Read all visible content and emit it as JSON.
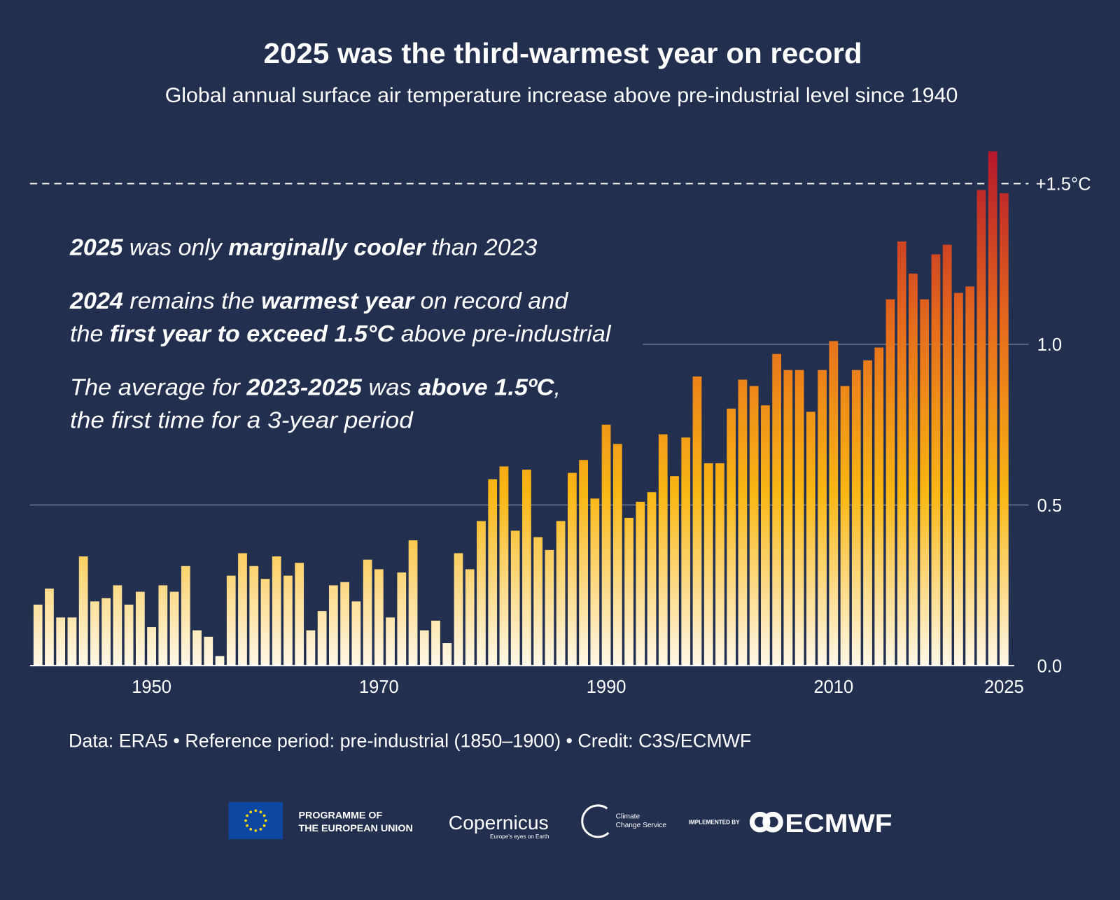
{
  "chart_data": {
    "type": "bar",
    "title": "2025 was the third-warmest year on record",
    "subtitle": "Global annual surface air temperature increase above pre-industrial level since 1940",
    "x": [
      1940,
      1941,
      1942,
      1943,
      1944,
      1945,
      1946,
      1947,
      1948,
      1949,
      1950,
      1951,
      1952,
      1953,
      1954,
      1955,
      1956,
      1957,
      1958,
      1959,
      1960,
      1961,
      1962,
      1963,
      1964,
      1965,
      1966,
      1967,
      1968,
      1969,
      1970,
      1971,
      1972,
      1973,
      1974,
      1975,
      1976,
      1977,
      1978,
      1979,
      1980,
      1981,
      1982,
      1983,
      1984,
      1985,
      1986,
      1987,
      1988,
      1989,
      1990,
      1991,
      1992,
      1993,
      1994,
      1995,
      1996,
      1997,
      1998,
      1999,
      2000,
      2001,
      2002,
      2003,
      2004,
      2005,
      2006,
      2007,
      2008,
      2009,
      2010,
      2011,
      2012,
      2013,
      2014,
      2015,
      2016,
      2017,
      2018,
      2019,
      2020,
      2021,
      2022,
      2023,
      2024,
      2025
    ],
    "values": [
      0.19,
      0.24,
      0.15,
      0.15,
      0.34,
      0.2,
      0.21,
      0.25,
      0.19,
      0.23,
      0.12,
      0.25,
      0.23,
      0.31,
      0.11,
      0.09,
      0.03,
      0.28,
      0.35,
      0.31,
      0.27,
      0.34,
      0.28,
      0.32,
      0.11,
      0.17,
      0.25,
      0.26,
      0.2,
      0.33,
      0.3,
      0.15,
      0.29,
      0.39,
      0.11,
      0.14,
      0.07,
      0.35,
      0.3,
      0.45,
      0.58,
      0.62,
      0.42,
      0.61,
      0.4,
      0.36,
      0.45,
      0.6,
      0.64,
      0.52,
      0.75,
      0.69,
      0.46,
      0.51,
      0.54,
      0.72,
      0.59,
      0.71,
      0.9,
      0.63,
      0.63,
      0.8,
      0.89,
      0.87,
      0.81,
      0.97,
      0.92,
      0.92,
      0.79,
      0.92,
      1.01,
      0.87,
      0.92,
      0.95,
      0.99,
      1.14,
      1.32,
      1.22,
      1.14,
      1.28,
      1.31,
      1.16,
      1.18,
      1.48,
      1.6,
      1.47
    ],
    "colors": [
      "#fff8e8",
      "#f9b714",
      "#e56a1c",
      "#b3172c"
    ],
    "xlim": [
      1939.3,
      2025.9
    ],
    "xticks": [
      1950,
      1970,
      1990,
      2010,
      2025
    ],
    "ylim": [
      0,
      1.6
    ],
    "yticks": [
      {
        "value": 0,
        "label": "0.0"
      },
      0.5,
      {
        "value": 1,
        "label": "1.0"
      }
    ],
    "grid": true,
    "threshold": {
      "value": 1.5,
      "label": "+1.5°C"
    },
    "annotations": [
      {
        "lines": [
          [
            {
              "text": "2025",
              "bold": true
            },
            {
              "text": " was only "
            },
            {
              "text": "marginally cooler",
              "bold": true
            },
            {
              "text": " than 2023"
            }
          ]
        ]
      },
      {
        "lines": [
          [
            {
              "text": "2024",
              "bold": true
            },
            {
              "text": " remains the "
            },
            {
              "text": "warmest year",
              "bold": true
            },
            {
              "text": " on record and"
            }
          ],
          [
            {
              "text": "the "
            },
            {
              "text": "first year to exceed 1.5°C",
              "bold": true
            },
            {
              "text": " above pre-industrial"
            }
          ]
        ]
      },
      {
        "lines": [
          [
            {
              "text": "The average for "
            },
            {
              "text": "2023-2025",
              "bold": true
            },
            {
              "text": " was "
            },
            {
              "text": "above 1.5ºC",
              "bold": true
            },
            {
              "text": ","
            }
          ],
          [
            {
              "text": "the first time for a 3-year period"
            }
          ]
        ]
      }
    ],
    "source": "Data: ERA5 • Reference period: pre-industrial (1850–1900) • Credit: C3S/ECMWF"
  },
  "logos": {
    "eu": [
      "PROGRAMME OF",
      "THE EUROPEAN UNION"
    ],
    "copernicus": "Copernicus",
    "copernicus_tagline": "Europe's eyes on Earth",
    "c3s": [
      "Climate",
      "Change Service"
    ],
    "implemented_by": "IMPLEMENTED BY",
    "ecmwf": "ECMWF"
  }
}
